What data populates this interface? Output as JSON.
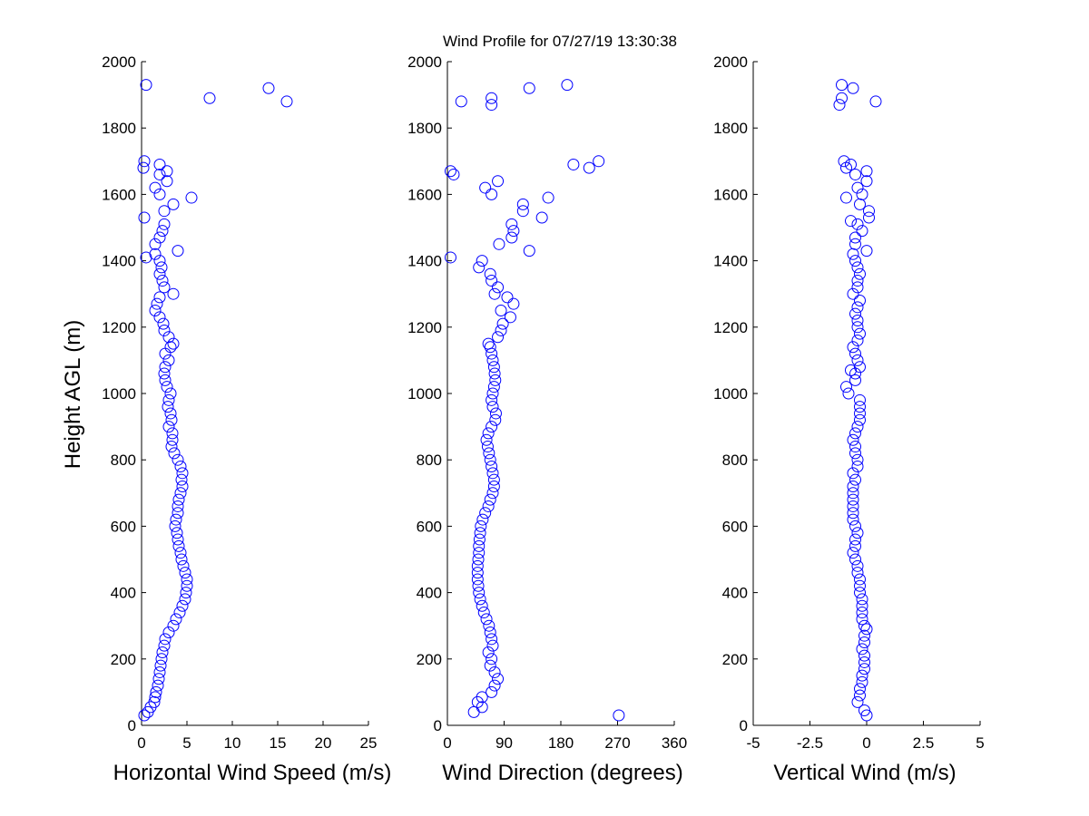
{
  "title": "Wind Profile for  07/27/19 13:30:38",
  "ylabel": "Height AGL (m)",
  "colors": {
    "marker": "#0000ff",
    "axis": "#000000",
    "background": "#ffffff"
  },
  "chart_data": [
    {
      "type": "scatter",
      "xlabel": "Horizontal Wind Speed (m/s)",
      "xlim": [
        0,
        25
      ],
      "xticks": [
        0,
        5,
        10,
        15,
        20,
        25
      ],
      "xtick_labels": [
        "0",
        "5",
        "10",
        "15",
        "20",
        "25"
      ],
      "ylim": [
        0,
        2000
      ],
      "yticks": [
        0,
        200,
        400,
        600,
        800,
        1000,
        1200,
        1400,
        1600,
        1800,
        2000
      ],
      "ytick_labels": [
        "0",
        "200",
        "400",
        "600",
        "800",
        "1000",
        "1200",
        "1400",
        "1600",
        "1800",
        "2000"
      ],
      "marker": "circle-open",
      "points": [
        [
          0.3,
          30
        ],
        [
          0.7,
          40
        ],
        [
          1.0,
          55
        ],
        [
          1.4,
          70
        ],
        [
          1.5,
          85
        ],
        [
          1.6,
          100
        ],
        [
          1.8,
          120
        ],
        [
          1.9,
          140
        ],
        [
          2.0,
          160
        ],
        [
          2.1,
          180
        ],
        [
          2.2,
          200
        ],
        [
          2.3,
          220
        ],
        [
          2.5,
          240
        ],
        [
          2.6,
          260
        ],
        [
          3.0,
          280
        ],
        [
          3.5,
          300
        ],
        [
          3.8,
          320
        ],
        [
          4.2,
          340
        ],
        [
          4.5,
          360
        ],
        [
          4.8,
          380
        ],
        [
          4.9,
          400
        ],
        [
          5.0,
          420
        ],
        [
          5.0,
          440
        ],
        [
          4.8,
          460
        ],
        [
          4.6,
          480
        ],
        [
          4.4,
          500
        ],
        [
          4.3,
          520
        ],
        [
          4.1,
          540
        ],
        [
          4.0,
          560
        ],
        [
          3.9,
          580
        ],
        [
          3.7,
          600
        ],
        [
          3.8,
          620
        ],
        [
          4.0,
          640
        ],
        [
          4.0,
          660
        ],
        [
          4.1,
          680
        ],
        [
          4.3,
          700
        ],
        [
          4.5,
          720
        ],
        [
          4.4,
          740
        ],
        [
          4.5,
          760
        ],
        [
          4.3,
          780
        ],
        [
          4.0,
          800
        ],
        [
          3.6,
          820
        ],
        [
          3.3,
          840
        ],
        [
          3.4,
          860
        ],
        [
          3.4,
          880
        ],
        [
          3.0,
          900
        ],
        [
          3.3,
          920
        ],
        [
          3.2,
          940
        ],
        [
          2.9,
          960
        ],
        [
          3.0,
          980
        ],
        [
          3.2,
          1000
        ],
        [
          2.8,
          1020
        ],
        [
          2.6,
          1040
        ],
        [
          2.5,
          1060
        ],
        [
          2.6,
          1080
        ],
        [
          3.0,
          1100
        ],
        [
          2.6,
          1120
        ],
        [
          3.2,
          1140
        ],
        [
          3.5,
          1150
        ],
        [
          3.0,
          1170
        ],
        [
          2.5,
          1190
        ],
        [
          2.4,
          1210
        ],
        [
          2.0,
          1230
        ],
        [
          1.5,
          1250
        ],
        [
          1.7,
          1270
        ],
        [
          2.0,
          1290
        ],
        [
          3.5,
          1300
        ],
        [
          2.5,
          1320
        ],
        [
          2.3,
          1340
        ],
        [
          2.0,
          1360
        ],
        [
          2.2,
          1380
        ],
        [
          2.0,
          1400
        ],
        [
          0.5,
          1410
        ],
        [
          1.5,
          1420
        ],
        [
          4.0,
          1430
        ],
        [
          1.5,
          1450
        ],
        [
          2.0,
          1470
        ],
        [
          2.3,
          1490
        ],
        [
          2.5,
          1510
        ],
        [
          0.3,
          1530
        ],
        [
          2.5,
          1550
        ],
        [
          3.5,
          1570
        ],
        [
          5.5,
          1590
        ],
        [
          2.0,
          1600
        ],
        [
          1.5,
          1620
        ],
        [
          2.8,
          1640
        ],
        [
          2.0,
          1660
        ],
        [
          2.8,
          1670
        ],
        [
          0.2,
          1680
        ],
        [
          2.0,
          1690
        ],
        [
          0.3,
          1700
        ],
        [
          7.5,
          1890
        ],
        [
          14.0,
          1920
        ],
        [
          16.0,
          1880
        ],
        [
          0.5,
          1930
        ]
      ]
    },
    {
      "type": "scatter",
      "xlabel": "Wind Direction (degrees)",
      "xlim": [
        0,
        360
      ],
      "xticks": [
        0,
        90,
        180,
        270,
        360
      ],
      "xtick_labels": [
        "0",
        "90",
        "180",
        "270",
        "360"
      ],
      "ylim": [
        0,
        2000
      ],
      "yticks": [
        0,
        200,
        400,
        600,
        800,
        1000,
        1200,
        1400,
        1600,
        1800,
        2000
      ],
      "ytick_labels": [
        "0",
        "200",
        "400",
        "600",
        "800",
        "1000",
        "1200",
        "1400",
        "1600",
        "1800",
        "2000"
      ],
      "marker": "circle-open",
      "points": [
        [
          272,
          30
        ],
        [
          42,
          40
        ],
        [
          55,
          55
        ],
        [
          48,
          70
        ],
        [
          55,
          85
        ],
        [
          70,
          100
        ],
        [
          75,
          120
        ],
        [
          80,
          140
        ],
        [
          75,
          160
        ],
        [
          68,
          180
        ],
        [
          70,
          200
        ],
        [
          65,
          220
        ],
        [
          72,
          240
        ],
        [
          70,
          260
        ],
        [
          68,
          280
        ],
        [
          66,
          300
        ],
        [
          62,
          320
        ],
        [
          58,
          340
        ],
        [
          55,
          360
        ],
        [
          52,
          380
        ],
        [
          50,
          400
        ],
        [
          49,
          420
        ],
        [
          48,
          440
        ],
        [
          48,
          460
        ],
        [
          48,
          480
        ],
        [
          49,
          500
        ],
        [
          50,
          520
        ],
        [
          50,
          540
        ],
        [
          51,
          560
        ],
        [
          52,
          580
        ],
        [
          53,
          600
        ],
        [
          56,
          620
        ],
        [
          60,
          640
        ],
        [
          65,
          660
        ],
        [
          68,
          680
        ],
        [
          72,
          700
        ],
        [
          74,
          720
        ],
        [
          74,
          740
        ],
        [
          72,
          760
        ],
        [
          70,
          780
        ],
        [
          68,
          800
        ],
        [
          66,
          820
        ],
        [
          64,
          840
        ],
        [
          62,
          860
        ],
        [
          65,
          880
        ],
        [
          70,
          900
        ],
        [
          76,
          920
        ],
        [
          77,
          940
        ],
        [
          72,
          960
        ],
        [
          70,
          980
        ],
        [
          72,
          1000
        ],
        [
          74,
          1020
        ],
        [
          76,
          1040
        ],
        [
          75,
          1060
        ],
        [
          74,
          1080
        ],
        [
          72,
          1100
        ],
        [
          70,
          1120
        ],
        [
          68,
          1140
        ],
        [
          65,
          1150
        ],
        [
          80,
          1170
        ],
        [
          85,
          1190
        ],
        [
          88,
          1210
        ],
        [
          100,
          1230
        ],
        [
          85,
          1250
        ],
        [
          105,
          1270
        ],
        [
          95,
          1290
        ],
        [
          75,
          1300
        ],
        [
          80,
          1320
        ],
        [
          70,
          1340
        ],
        [
          68,
          1360
        ],
        [
          50,
          1380
        ],
        [
          55,
          1400
        ],
        [
          5,
          1410
        ],
        [
          130,
          1430
        ],
        [
          82,
          1450
        ],
        [
          102,
          1470
        ],
        [
          105,
          1490
        ],
        [
          102,
          1510
        ],
        [
          150,
          1530
        ],
        [
          120,
          1550
        ],
        [
          120,
          1570
        ],
        [
          160,
          1590
        ],
        [
          70,
          1600
        ],
        [
          60,
          1620
        ],
        [
          80,
          1640
        ],
        [
          10,
          1660
        ],
        [
          5,
          1670
        ],
        [
          225,
          1680
        ],
        [
          200,
          1690
        ],
        [
          240,
          1700
        ],
        [
          22,
          1880
        ],
        [
          70,
          1890
        ],
        [
          130,
          1920
        ],
        [
          190,
          1930
        ],
        [
          70,
          1870
        ]
      ]
    },
    {
      "type": "scatter",
      "xlabel": "Vertical Wind (m/s)",
      "xlim": [
        -5,
        5
      ],
      "xticks": [
        -5,
        -2.5,
        0,
        2.5,
        5
      ],
      "xtick_labels": [
        "-5",
        "-2.5",
        "0",
        "2.5",
        "5"
      ],
      "ylim": [
        0,
        2000
      ],
      "yticks": [
        0,
        200,
        400,
        600,
        800,
        1000,
        1200,
        1400,
        1600,
        1800,
        2000
      ],
      "ytick_labels": [
        "0",
        "200",
        "400",
        "600",
        "800",
        "1000",
        "1200",
        "1400",
        "1600",
        "1800",
        "2000"
      ],
      "marker": "circle-open",
      "points": [
        [
          0.0,
          30
        ],
        [
          -0.1,
          45
        ],
        [
          -0.4,
          70
        ],
        [
          -0.3,
          90
        ],
        [
          -0.3,
          110
        ],
        [
          -0.2,
          130
        ],
        [
          -0.2,
          150
        ],
        [
          -0.1,
          170
        ],
        [
          -0.1,
          190
        ],
        [
          -0.1,
          210
        ],
        [
          -0.2,
          230
        ],
        [
          -0.1,
          250
        ],
        [
          -0.1,
          270
        ],
        [
          0.0,
          290
        ],
        [
          -0.1,
          300
        ],
        [
          -0.2,
          320
        ],
        [
          -0.2,
          340
        ],
        [
          -0.2,
          360
        ],
        [
          -0.2,
          380
        ],
        [
          -0.3,
          400
        ],
        [
          -0.3,
          420
        ],
        [
          -0.3,
          440
        ],
        [
          -0.4,
          460
        ],
        [
          -0.4,
          480
        ],
        [
          -0.5,
          500
        ],
        [
          -0.6,
          520
        ],
        [
          -0.5,
          540
        ],
        [
          -0.5,
          560
        ],
        [
          -0.4,
          580
        ],
        [
          -0.5,
          600
        ],
        [
          -0.6,
          620
        ],
        [
          -0.6,
          640
        ],
        [
          -0.6,
          660
        ],
        [
          -0.6,
          680
        ],
        [
          -0.6,
          700
        ],
        [
          -0.6,
          720
        ],
        [
          -0.5,
          740
        ],
        [
          -0.6,
          760
        ],
        [
          -0.4,
          780
        ],
        [
          -0.4,
          800
        ],
        [
          -0.5,
          820
        ],
        [
          -0.5,
          840
        ],
        [
          -0.6,
          860
        ],
        [
          -0.5,
          880
        ],
        [
          -0.4,
          900
        ],
        [
          -0.3,
          920
        ],
        [
          -0.3,
          940
        ],
        [
          -0.3,
          960
        ],
        [
          -0.3,
          980
        ],
        [
          -0.8,
          1000
        ],
        [
          -0.9,
          1020
        ],
        [
          -0.5,
          1040
        ],
        [
          -0.5,
          1060
        ],
        [
          -0.7,
          1070
        ],
        [
          -0.3,
          1080
        ],
        [
          -0.4,
          1100
        ],
        [
          -0.5,
          1120
        ],
        [
          -0.6,
          1140
        ],
        [
          -0.4,
          1160
        ],
        [
          -0.3,
          1180
        ],
        [
          -0.4,
          1200
        ],
        [
          -0.4,
          1220
        ],
        [
          -0.5,
          1240
        ],
        [
          -0.4,
          1260
        ],
        [
          -0.3,
          1280
        ],
        [
          -0.6,
          1300
        ],
        [
          -0.4,
          1320
        ],
        [
          -0.4,
          1340
        ],
        [
          -0.3,
          1360
        ],
        [
          -0.4,
          1380
        ],
        [
          -0.5,
          1400
        ],
        [
          -0.6,
          1420
        ],
        [
          0.0,
          1430
        ],
        [
          -0.5,
          1450
        ],
        [
          -0.5,
          1470
        ],
        [
          -0.2,
          1490
        ],
        [
          -0.4,
          1510
        ],
        [
          -0.7,
          1520
        ],
        [
          0.1,
          1530
        ],
        [
          0.1,
          1550
        ],
        [
          -0.3,
          1570
        ],
        [
          -0.9,
          1590
        ],
        [
          -0.2,
          1600
        ],
        [
          -0.4,
          1620
        ],
        [
          0.0,
          1640
        ],
        [
          -0.5,
          1660
        ],
        [
          0.0,
          1670
        ],
        [
          -0.9,
          1680
        ],
        [
          -0.7,
          1690
        ],
        [
          -1.0,
          1700
        ],
        [
          0.4,
          1880
        ],
        [
          -1.2,
          1870
        ],
        [
          -1.1,
          1890
        ],
        [
          -0.6,
          1920
        ],
        [
          -1.1,
          1930
        ]
      ]
    }
  ]
}
